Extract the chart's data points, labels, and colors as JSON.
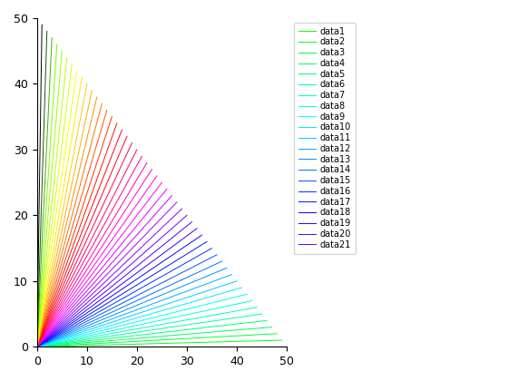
{
  "n_lines": 50,
  "n_legend": 21,
  "x_max": 50,
  "y_max": 50,
  "xlim": [
    0,
    50
  ],
  "ylim": [
    0,
    50
  ],
  "linewidth": 0.7,
  "figsize": [
    5.6,
    4.2
  ],
  "dpi": 100,
  "background_color": "#ffffff",
  "legend_fontsize": 7.0,
  "tick_fontsize": 9,
  "font_family": "DejaVu Sans"
}
